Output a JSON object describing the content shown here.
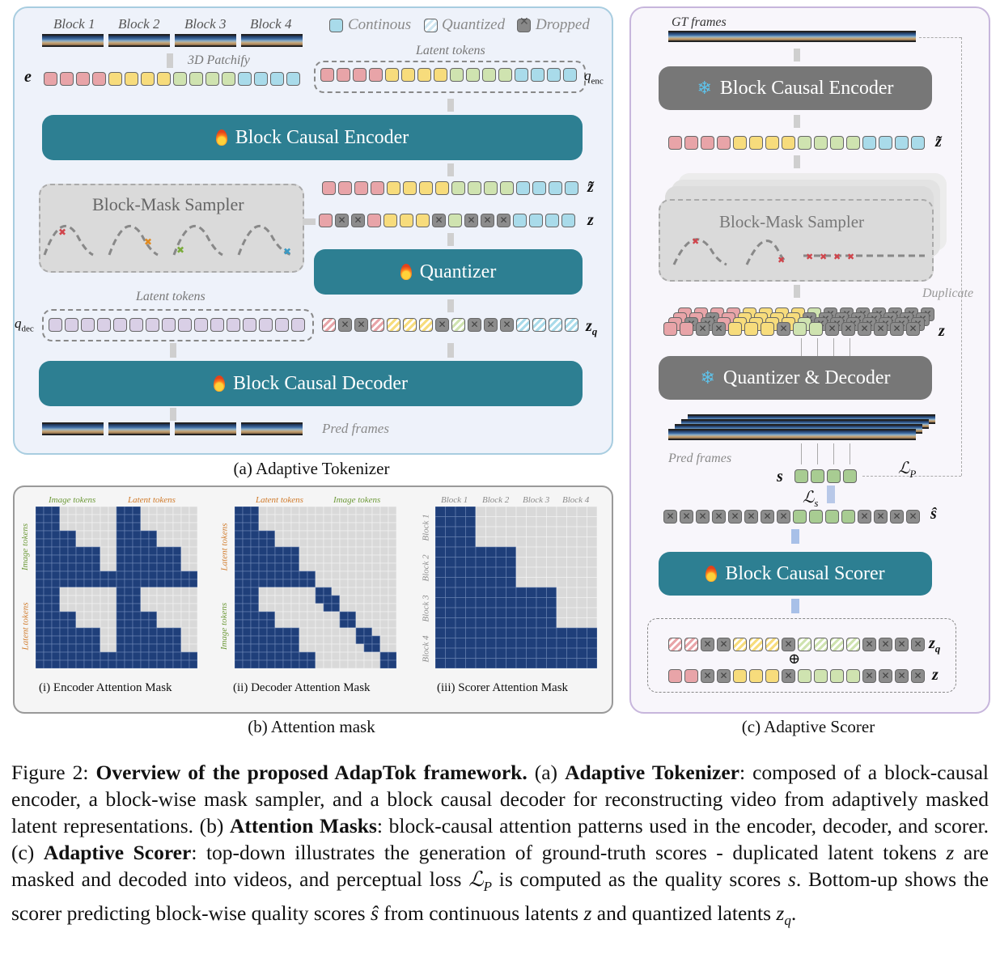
{
  "panel_a": {
    "blocks": [
      "Block 1",
      "Block 2",
      "Block 3",
      "Block 4"
    ],
    "legend": {
      "continous": "Continous",
      "quantized": "Quantized",
      "dropped": "Dropped"
    },
    "patchify": "3D Patchify",
    "latent_tokens_top": "Latent tokens",
    "latent_tokens_dec": "Latent tokens",
    "encoder": "Block Causal Encoder",
    "sampler": "Block-Mask Sampler",
    "quantizer": "Quantizer",
    "decoder": "Block Causal Decoder",
    "pred_frames": "Pred frames",
    "sym_e": "e",
    "sym_q": "q",
    "sym_q_enc_sub": "enc",
    "sym_q_dec_sub": "dec",
    "sym_z_tilde": "z̃",
    "sym_z": "z",
    "sym_zq": "z",
    "sym_zq_sub": "q",
    "caption": "(a) Adaptive Tokenizer"
  },
  "panel_b": {
    "enc": {
      "top_left": "Image tokens",
      "top_right": "Latent tokens",
      "left_top": "Image tokens",
      "left_bottom": "Latent tokens",
      "caption": "(i) Encoder Attention Mask"
    },
    "dec": {
      "top_left": "Latent tokens",
      "top_right": "Image tokens",
      "left_top": "Latent tokens",
      "left_bottom": "Image tokens",
      "caption": "(ii) Decoder Attention Mask"
    },
    "sco": {
      "top": [
        "Block 1",
        "Block 2",
        "Block 3",
        "Block 4"
      ],
      "left": [
        "Block 1",
        "Block 2",
        "Block 3",
        "Block 4"
      ],
      "caption": "(iii) Scorer Attention Mask"
    },
    "caption": "(b) Attention mask"
  },
  "panel_c": {
    "gt_frames": "GT frames",
    "encoder": "Block Causal Encoder",
    "sampler": "Block-Mask Sampler",
    "duplicate": "Duplicate",
    "quant_dec": "Quantizer & Decoder",
    "pred_frames": "Pred frames",
    "scorer": "Block Causal Scorer",
    "sym_s": "s",
    "sym_ls": "ℒ",
    "sym_ls_sub": "s",
    "sym_lp": "ℒ",
    "sym_lp_sub": "P",
    "sym_s_hat": "ŝ",
    "sym_z_tilde": "z̃",
    "sym_z": "z",
    "sym_zq": "z",
    "sym_zq_sub": "q",
    "oplus": "⊕",
    "caption": "(c) Adaptive Scorer"
  },
  "figure_caption": {
    "label": "Figure 2: ",
    "title": "Overview of the proposed AdapTok framework.",
    "p1": " (a) ",
    "b1": "Adaptive Tokenizer",
    "t1": ": composed of a block-causal encoder, a block-wise mask sampler, and a block causal decoder for reconstructing video from adaptively masked latent representations. (b) ",
    "b2": "Attention Masks",
    "t2": ": block-causal attention patterns used in the encoder, decoder, and scorer. (c) ",
    "b3": "Adaptive Scorer",
    "t3": ": top-down illustrates the generation of ground-truth scores - duplicated latent tokens ",
    "m1": "z",
    "t4": " are masked and decoded into videos, and perceptual loss ",
    "m2": "ℒ",
    "m2sub": "P",
    "t5": " is computed as the quality scores ",
    "m3": "s",
    "t6": ". Bottom-up shows the scorer predicting block-wise quality scores ",
    "m4": "ŝ",
    "t7": " from continuous latents ",
    "m5": "z",
    "t8": " and quantized latents ",
    "m6": "z",
    "m6sub": "q",
    "t9": "."
  },
  "colors": {
    "teal_button": "#2d7f92",
    "grey_button": "#777777",
    "mask_blue": "#1f3f7a",
    "block1": "#e8a4a8",
    "block2": "#f7dc7c",
    "block3": "#cfe3b0",
    "block4": "#a9dbea",
    "latent_q": "#d9cfe6"
  }
}
